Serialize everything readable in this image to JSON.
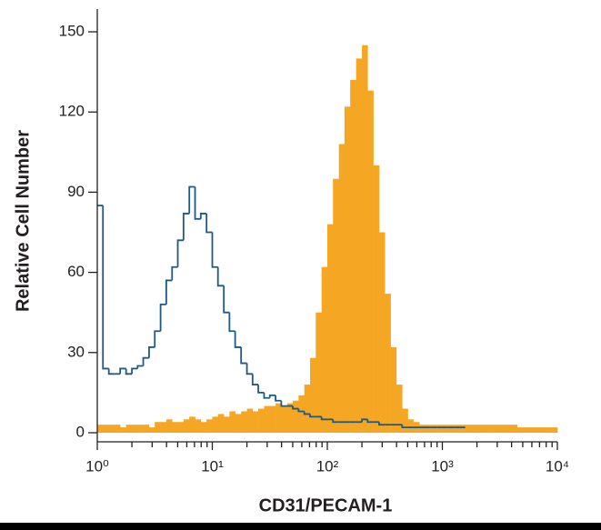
{
  "chart_data": {
    "type": "histogram",
    "xlabel": "CD31/PECAM-1",
    "ylabel": "Relative Cell Number",
    "xscale": "log",
    "xlim": [
      1,
      10000
    ],
    "ylim": [
      0,
      150
    ],
    "xticks": [
      {
        "value": 1,
        "label": "10⁰"
      },
      {
        "value": 10,
        "label": "10¹"
      },
      {
        "value": 100,
        "label": "10²"
      },
      {
        "value": 1000,
        "label": "10³"
      },
      {
        "value": 10000,
        "label": "10⁴"
      }
    ],
    "xminorticks": [
      2,
      3,
      4,
      5,
      6,
      7,
      8,
      9,
      20,
      30,
      40,
      50,
      60,
      70,
      80,
      90,
      200,
      300,
      400,
      500,
      600,
      700,
      800,
      900,
      2000,
      3000,
      4000,
      5000,
      6000,
      7000,
      8000,
      9000
    ],
    "yticks": [
      0,
      30,
      60,
      90,
      120,
      150
    ],
    "x": [
      1,
      1.12,
      1.26,
      1.41,
      1.58,
      1.78,
      2,
      2.24,
      2.51,
      2.82,
      3.16,
      3.55,
      3.98,
      4.47,
      5.01,
      5.62,
      6.31,
      7.08,
      7.94,
      8.91,
      10,
      11.2,
      12.6,
      14.1,
      15.8,
      17.8,
      20,
      22.4,
      25.1,
      28.2,
      31.6,
      35.5,
      39.8,
      44.7,
      50.1,
      56.2,
      63.1,
      70.8,
      79.4,
      89.1,
      100,
      112,
      126,
      141,
      158,
      178,
      200,
      224,
      251,
      282,
      316,
      355,
      398,
      447,
      501,
      562,
      631,
      708,
      794,
      891,
      1000,
      1120,
      1260,
      1410,
      1580,
      1780,
      2000,
      2240,
      2510,
      2820,
      3160,
      3550,
      3980,
      4470,
      5010,
      5620,
      6310,
      7080,
      7940,
      8910,
      10000
    ],
    "series": [
      {
        "style": "line",
        "color": "#1f5a85",
        "values": [
          85,
          24,
          22,
          22,
          24,
          22,
          24,
          25,
          28,
          32,
          38,
          48,
          57,
          62,
          72,
          82,
          92,
          80,
          82,
          75,
          62,
          55,
          45,
          38,
          32,
          26,
          22,
          18,
          15,
          13,
          14,
          12,
          10,
          10,
          9,
          8,
          7,
          6,
          6,
          5,
          5,
          4,
          4,
          4,
          4,
          4,
          5,
          4,
          4,
          3,
          3,
          3,
          3,
          2,
          2,
          2,
          2,
          2,
          2,
          2,
          2,
          2,
          2,
          2,
          null,
          null,
          null,
          null,
          null,
          null,
          null,
          null,
          null,
          null,
          null,
          null,
          null,
          null,
          null,
          null,
          null
        ]
      },
      {
        "style": "filled",
        "color": "#f5a623",
        "values": [
          3,
          3,
          3,
          3,
          2,
          3,
          3,
          3,
          3,
          2,
          4,
          4,
          5,
          4,
          4,
          5,
          6,
          5,
          4,
          5,
          6,
          7,
          6,
          8,
          7,
          8,
          9,
          8,
          9,
          10,
          10,
          11,
          10,
          11,
          12,
          14,
          18,
          28,
          45,
          62,
          78,
          95,
          108,
          122,
          132,
          140,
          145,
          128,
          100,
          75,
          52,
          32,
          18,
          9,
          5,
          4,
          3,
          3,
          3,
          3,
          3,
          3,
          3,
          3,
          3,
          3,
          3,
          3,
          3,
          3,
          3,
          3,
          3,
          2,
          2,
          2,
          2,
          2,
          2,
          2,
          null
        ]
      }
    ]
  }
}
